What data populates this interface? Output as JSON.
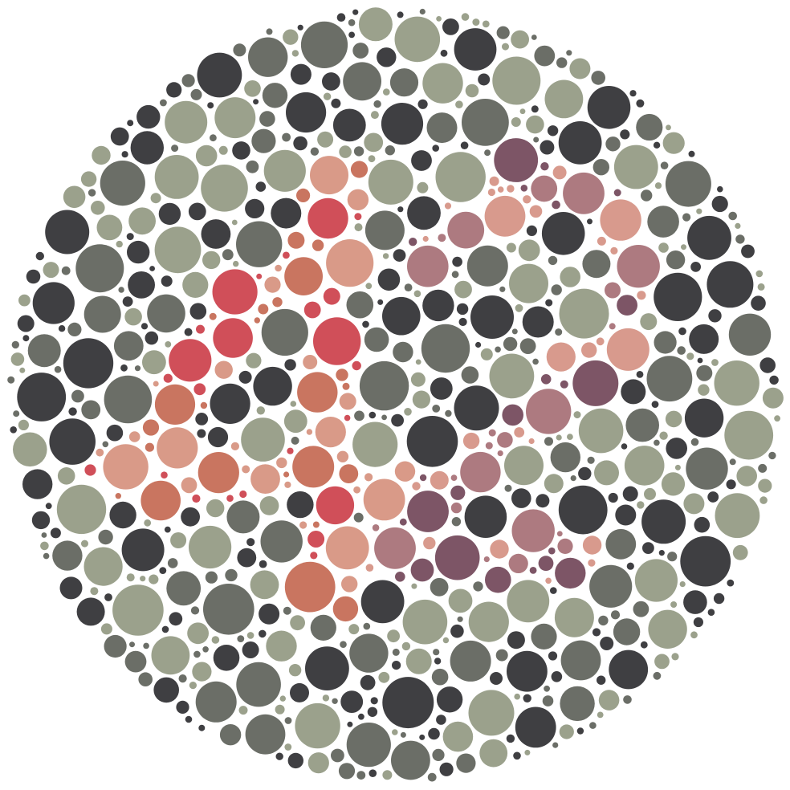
{
  "plate": {
    "kind": "color-vision-test-plate",
    "background_color": "#ffffff",
    "palette": {
      "background_dots": [
        "#3f3f42",
        "#6b6e67",
        "#9ba18c"
      ],
      "figure_left_dots": [
        "#d04f59",
        "#d99a88",
        "#c97560"
      ],
      "figure_right_dots": [
        "#7d5566",
        "#ad7a80",
        "#d89a8d"
      ]
    },
    "figures": [
      {
        "id": "left-digit",
        "description_visible": false
      },
      {
        "id": "right-digit",
        "description_visible": false
      }
    ]
  }
}
